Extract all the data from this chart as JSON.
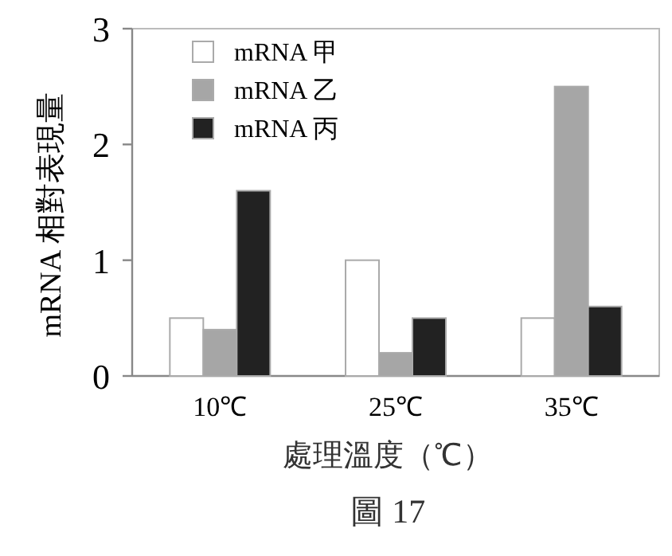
{
  "chart_data": {
    "type": "bar",
    "xlabel": "處理溫度（℃）",
    "ylabel": "mRNA 相對表現量",
    "categories": [
      "10℃",
      "25℃",
      "35℃"
    ],
    "series": [
      {
        "name": "mRNA 甲",
        "color": "#ffffff",
        "values": [
          0.5,
          1.0,
          0.5
        ]
      },
      {
        "name": "mRNA 乙",
        "color": "#a6a6a6",
        "values": [
          0.4,
          0.2,
          2.5
        ]
      },
      {
        "name": "mRNA 丙",
        "color": "#222222",
        "values": [
          1.6,
          0.5,
          0.6
        ]
      }
    ],
    "ylim": [
      0,
      3
    ],
    "yticks": [
      0,
      1,
      2,
      3
    ],
    "legend": "top left",
    "annotations": [
      "圖 17"
    ]
  }
}
